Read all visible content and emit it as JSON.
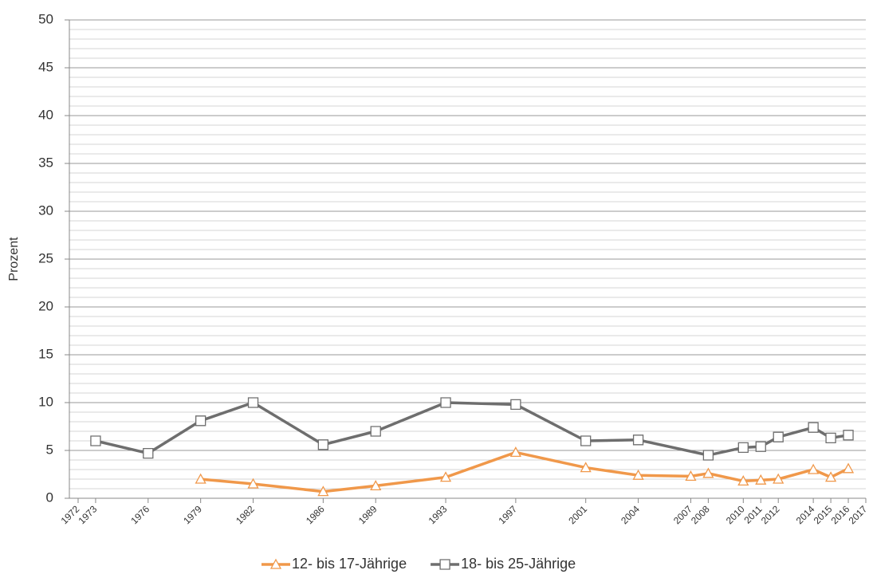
{
  "chart_data": {
    "type": "line",
    "y_label": "Prozent",
    "xlim": [
      1971.5,
      2017
    ],
    "ylim": [
      0,
      50
    ],
    "yticks": [
      0,
      5,
      10,
      15,
      20,
      25,
      30,
      35,
      40,
      45,
      50
    ],
    "minor_grid_step": 1,
    "xticks": [
      1972,
      1973,
      1976,
      1979,
      1982,
      1986,
      1989,
      1993,
      1997,
      2001,
      2004,
      2007,
      2008,
      2010,
      2011,
      2012,
      2014,
      2015,
      2016,
      2017
    ],
    "grid": true,
    "legend": "bottom",
    "series": [
      {
        "name": "12- bis 17-Jährige",
        "color": "#f0984a",
        "marker": "triangle",
        "x": [
          1979,
          1982,
          1986,
          1989,
          1993,
          1997,
          2001,
          2004,
          2007,
          2008,
          2010,
          2011,
          2012,
          2014,
          2015,
          2016
        ],
        "values": [
          2.0,
          1.5,
          0.7,
          1.3,
          2.2,
          4.8,
          3.2,
          2.4,
          2.3,
          2.6,
          1.8,
          1.9,
          2.0,
          3.0,
          2.2,
          3.1
        ]
      },
      {
        "name": "18- bis 25-Jährige",
        "color": "#6e6e6e",
        "marker": "square",
        "x": [
          1973,
          1976,
          1979,
          1982,
          1986,
          1989,
          1993,
          1997,
          2001,
          2004,
          2008,
          2010,
          2011,
          2012,
          2014,
          2015,
          2016
        ],
        "values": [
          6.0,
          4.7,
          8.1,
          10.0,
          5.6,
          7.0,
          10.0,
          9.8,
          6.0,
          6.1,
          4.5,
          5.3,
          5.4,
          6.4,
          7.4,
          6.3,
          6.6
        ]
      }
    ]
  }
}
